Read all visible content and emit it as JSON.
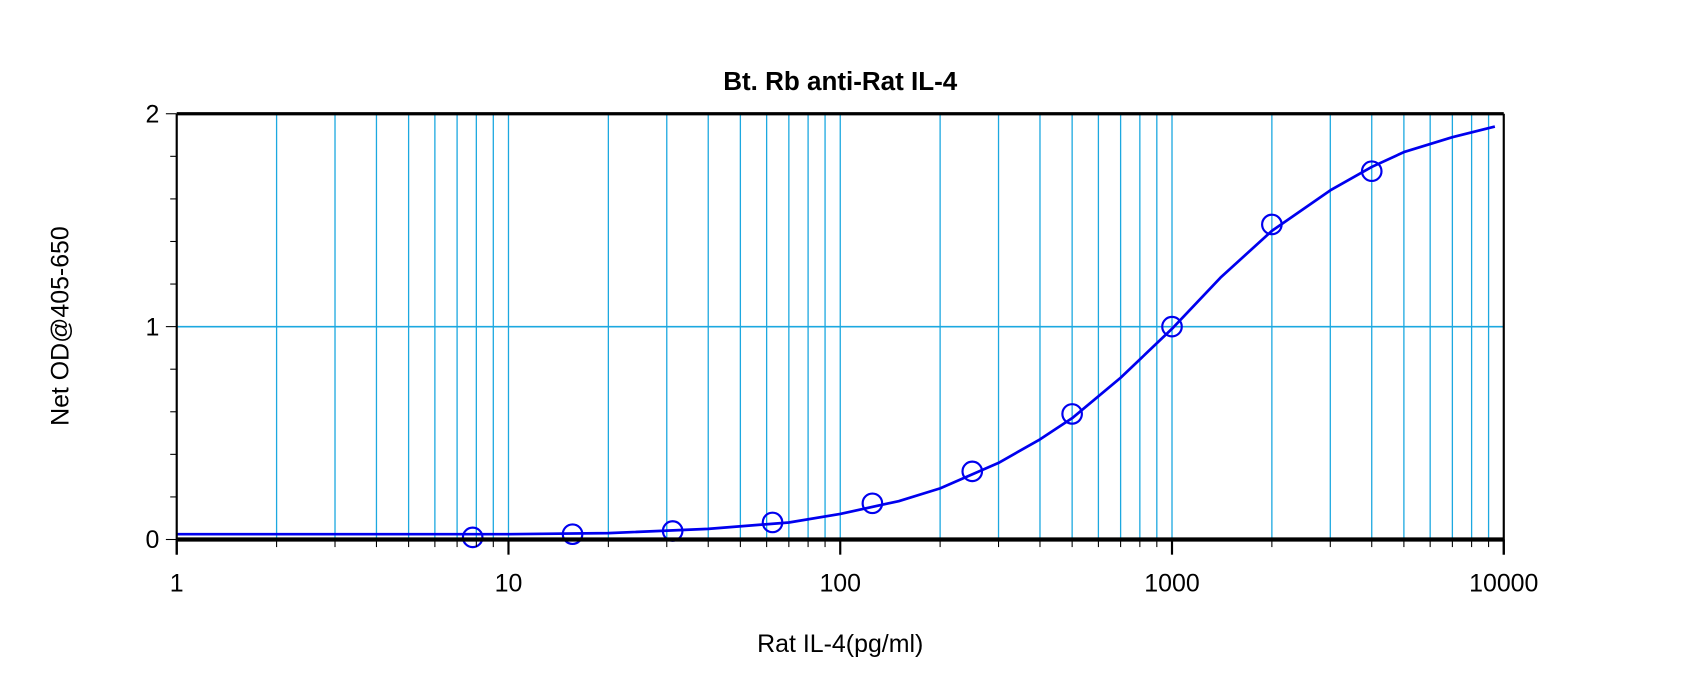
{
  "chart_data": {
    "type": "scatter",
    "title": "Bt. Rb anti-Rat IL-4",
    "xlabel": "Rat IL-4(pg/ml)",
    "ylabel": "Net OD@405-650",
    "x_scale": "log",
    "xlim": [
      1,
      10000
    ],
    "ylim": [
      0,
      2
    ],
    "x_ticks": [
      "1",
      "10",
      "100",
      "1000",
      "10000"
    ],
    "y_ticks": [
      "0",
      "1",
      "2"
    ],
    "grid": true,
    "colors": {
      "grid": "#1ca8e0",
      "series": "#0000ee",
      "axis": "#000000"
    },
    "series": [
      {
        "kind": "points",
        "marker": "open-circle",
        "x": [
          7.8,
          15.6,
          31.25,
          62.5,
          125,
          250,
          500,
          1000,
          2000,
          4000
        ],
        "y": [
          0.01,
          0.025,
          0.04,
          0.08,
          0.17,
          0.32,
          0.59,
          1.0,
          1.48,
          1.73
        ]
      },
      {
        "kind": "fit-curve",
        "x": [
          1,
          10,
          20,
          40,
          70,
          100,
          150,
          200,
          300,
          400,
          500,
          700,
          1000,
          1400,
          2000,
          3000,
          4000,
          5000,
          7000,
          9400
        ],
        "y": [
          0.025,
          0.025,
          0.03,
          0.05,
          0.08,
          0.12,
          0.18,
          0.24,
          0.36,
          0.47,
          0.57,
          0.76,
          0.99,
          1.23,
          1.45,
          1.64,
          1.75,
          1.82,
          1.89,
          1.94
        ]
      }
    ]
  }
}
